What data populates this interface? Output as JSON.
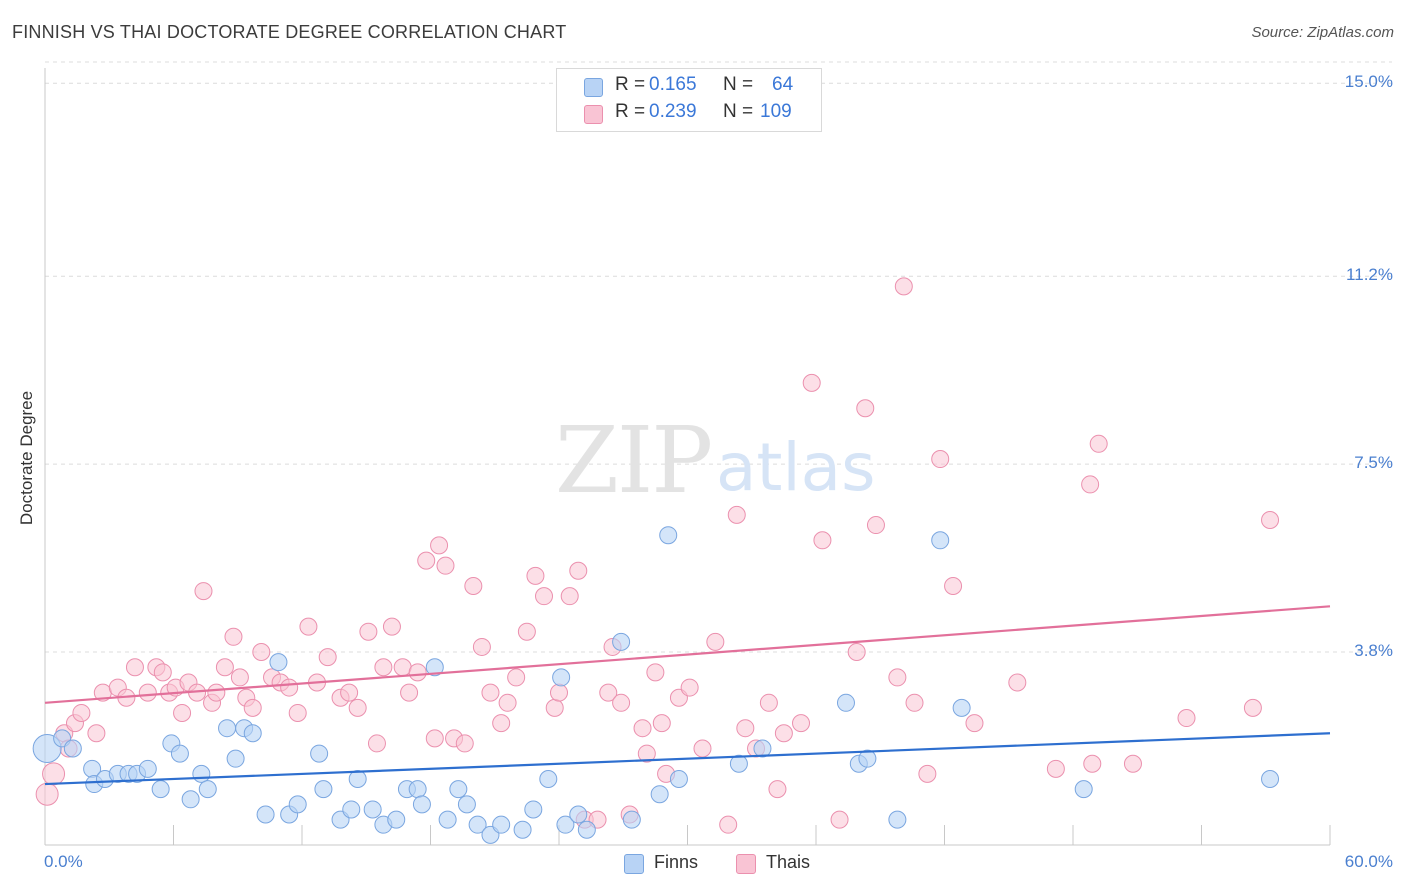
{
  "title": "FINNISH VS THAI DOCTORATE DEGREE CORRELATION CHART",
  "source": "Source: ZipAtlas.com",
  "watermark": {
    "zip": "ZIP",
    "atlas": "atlas"
  },
  "legend": {
    "rows": [
      {
        "r_label": "R =",
        "r_value": "0.165",
        "n_label": "N =",
        "n_value": "64"
      },
      {
        "r_label": "R =",
        "r_value": "0.239",
        "n_label": "N =",
        "n_value": "109"
      }
    ]
  },
  "bottom_legend": {
    "finns": "Finns",
    "thais": "Thais"
  },
  "colors": {
    "finns_fill": "#b8d3f5",
    "finns_stroke": "#7aa6e0",
    "finns_line": "#2e6fcf",
    "thais_fill": "#f9c4d4",
    "thais_stroke": "#eb90ae",
    "thais_line": "#e2709a",
    "tick_text": "#4a7fcf",
    "grid": "#dcdcdc"
  },
  "chart_data": {
    "type": "scatter",
    "title": "FINNISH VS THAI DOCTORATE DEGREE CORRELATION CHART",
    "xlabel": "",
    "ylabel": "Doctorate Degree",
    "xlim": [
      0,
      60
    ],
    "ylim": [
      0,
      15.3
    ],
    "y_ticks": [
      {
        "value": 3.8,
        "label": "3.8%"
      },
      {
        "value": 7.5,
        "label": "7.5%"
      },
      {
        "value": 11.2,
        "label": "11.2%"
      },
      {
        "value": 15.0,
        "label": "15.0%"
      }
    ],
    "x_tick_labels": [
      {
        "value": 0,
        "label": "0.0%"
      },
      {
        "value": 60,
        "label": "60.0%"
      }
    ],
    "grid": true,
    "legend_position": "top-center",
    "series": [
      {
        "name": "Finns",
        "r": 0.165,
        "n": 64,
        "trend": {
          "x": [
            0,
            60
          ],
          "y": [
            1.2,
            2.2
          ]
        },
        "points": [
          [
            0.1,
            1.9
          ],
          [
            0.8,
            2.1
          ],
          [
            1.3,
            1.9
          ],
          [
            2.2,
            1.5
          ],
          [
            2.3,
            1.2
          ],
          [
            2.8,
            1.3
          ],
          [
            3.4,
            1.4
          ],
          [
            3.9,
            1.4
          ],
          [
            4.3,
            1.4
          ],
          [
            4.8,
            1.5
          ],
          [
            5.4,
            1.1
          ],
          [
            5.9,
            2.0
          ],
          [
            6.3,
            1.8
          ],
          [
            6.8,
            0.9
          ],
          [
            7.3,
            1.4
          ],
          [
            7.6,
            1.1
          ],
          [
            8.5,
            2.3
          ],
          [
            8.9,
            1.7
          ],
          [
            9.3,
            2.3
          ],
          [
            9.7,
            2.2
          ],
          [
            10.3,
            0.6
          ],
          [
            10.9,
            3.6
          ],
          [
            11.4,
            0.6
          ],
          [
            11.8,
            0.8
          ],
          [
            12.8,
            1.8
          ],
          [
            13.0,
            1.1
          ],
          [
            13.8,
            0.5
          ],
          [
            14.3,
            0.7
          ],
          [
            14.6,
            1.3
          ],
          [
            15.3,
            0.7
          ],
          [
            15.8,
            0.4
          ],
          [
            16.4,
            0.5
          ],
          [
            16.9,
            1.1
          ],
          [
            17.4,
            1.1
          ],
          [
            17.6,
            0.8
          ],
          [
            18.2,
            3.5
          ],
          [
            18.8,
            0.5
          ],
          [
            19.3,
            1.1
          ],
          [
            19.7,
            0.8
          ],
          [
            20.2,
            0.4
          ],
          [
            20.8,
            0.2
          ],
          [
            21.3,
            0.4
          ],
          [
            22.3,
            0.3
          ],
          [
            22.8,
            0.7
          ],
          [
            23.5,
            1.3
          ],
          [
            24.1,
            3.3
          ],
          [
            24.3,
            0.4
          ],
          [
            24.9,
            0.6
          ],
          [
            25.3,
            0.3
          ],
          [
            26.9,
            4.0
          ],
          [
            27.4,
            0.5
          ],
          [
            28.7,
            1.0
          ],
          [
            29.1,
            6.1
          ],
          [
            29.6,
            1.3
          ],
          [
            32.4,
            1.6
          ],
          [
            33.5,
            1.9
          ],
          [
            37.4,
            2.8
          ],
          [
            38.0,
            1.6
          ],
          [
            38.4,
            1.7
          ],
          [
            39.8,
            0.5
          ],
          [
            41.8,
            6.0
          ],
          [
            42.8,
            2.7
          ],
          [
            57.2,
            1.3
          ],
          [
            48.5,
            1.1
          ]
        ]
      },
      {
        "name": "Thais",
        "r": 0.239,
        "n": 109,
        "trend": {
          "x": [
            0,
            60
          ],
          "y": [
            2.8,
            4.7
          ]
        },
        "points": [
          [
            0.1,
            1.0
          ],
          [
            0.4,
            1.4
          ],
          [
            0.9,
            2.2
          ],
          [
            1.1,
            1.9
          ],
          [
            1.4,
            2.4
          ],
          [
            1.7,
            2.6
          ],
          [
            2.4,
            2.2
          ],
          [
            2.7,
            3.0
          ],
          [
            3.4,
            3.1
          ],
          [
            3.8,
            2.9
          ],
          [
            4.2,
            3.5
          ],
          [
            4.8,
            3.0
          ],
          [
            5.2,
            3.5
          ],
          [
            5.5,
            3.4
          ],
          [
            5.8,
            3.0
          ],
          [
            6.1,
            3.1
          ],
          [
            6.4,
            2.6
          ],
          [
            6.7,
            3.2
          ],
          [
            7.1,
            3.0
          ],
          [
            7.4,
            5.0
          ],
          [
            7.8,
            2.8
          ],
          [
            8.0,
            3.0
          ],
          [
            8.4,
            3.5
          ],
          [
            8.8,
            4.1
          ],
          [
            9.1,
            3.3
          ],
          [
            9.4,
            2.9
          ],
          [
            9.7,
            2.7
          ],
          [
            10.1,
            3.8
          ],
          [
            10.6,
            3.3
          ],
          [
            11.0,
            3.2
          ],
          [
            11.4,
            3.1
          ],
          [
            11.8,
            2.6
          ],
          [
            12.3,
            4.3
          ],
          [
            12.7,
            3.2
          ],
          [
            13.2,
            3.7
          ],
          [
            13.8,
            2.9
          ],
          [
            14.2,
            3.0
          ],
          [
            14.6,
            2.7
          ],
          [
            15.1,
            4.2
          ],
          [
            15.5,
            2.0
          ],
          [
            15.8,
            3.5
          ],
          [
            16.2,
            4.3
          ],
          [
            16.7,
            3.5
          ],
          [
            17.0,
            3.0
          ],
          [
            17.4,
            3.4
          ],
          [
            17.8,
            5.6
          ],
          [
            18.2,
            2.1
          ],
          [
            18.4,
            5.9
          ],
          [
            18.7,
            5.5
          ],
          [
            19.1,
            2.1
          ],
          [
            19.6,
            2.0
          ],
          [
            20.0,
            5.1
          ],
          [
            20.4,
            3.9
          ],
          [
            20.8,
            3.0
          ],
          [
            21.3,
            2.4
          ],
          [
            21.6,
            2.8
          ],
          [
            22.0,
            3.3
          ],
          [
            22.5,
            4.2
          ],
          [
            22.9,
            5.3
          ],
          [
            23.3,
            4.9
          ],
          [
            23.8,
            2.7
          ],
          [
            24.0,
            3.0
          ],
          [
            24.5,
            4.9
          ],
          [
            24.9,
            5.4
          ],
          [
            25.2,
            0.5
          ],
          [
            25.8,
            0.5
          ],
          [
            26.3,
            3.0
          ],
          [
            26.5,
            3.9
          ],
          [
            26.9,
            2.8
          ],
          [
            27.3,
            0.6
          ],
          [
            27.9,
            2.3
          ],
          [
            28.1,
            1.8
          ],
          [
            28.5,
            3.4
          ],
          [
            28.8,
            2.4
          ],
          [
            29.0,
            1.4
          ],
          [
            29.6,
            2.9
          ],
          [
            30.1,
            3.1
          ],
          [
            30.7,
            1.9
          ],
          [
            31.3,
            4.0
          ],
          [
            31.9,
            0.4
          ],
          [
            32.3,
            6.5
          ],
          [
            32.7,
            2.3
          ],
          [
            33.2,
            1.9
          ],
          [
            33.8,
            2.8
          ],
          [
            34.2,
            1.1
          ],
          [
            34.5,
            2.2
          ],
          [
            35.3,
            2.4
          ],
          [
            35.8,
            9.1
          ],
          [
            36.3,
            6.0
          ],
          [
            37.1,
            0.5
          ],
          [
            37.9,
            3.8
          ],
          [
            38.3,
            8.6
          ],
          [
            38.8,
            6.3
          ],
          [
            39.8,
            3.3
          ],
          [
            40.1,
            11.0
          ],
          [
            40.6,
            2.8
          ],
          [
            41.2,
            1.4
          ],
          [
            41.8,
            7.6
          ],
          [
            42.4,
            5.1
          ],
          [
            43.4,
            2.4
          ],
          [
            45.4,
            3.2
          ],
          [
            47.2,
            1.5
          ],
          [
            48.9,
            1.6
          ],
          [
            50.8,
            1.6
          ],
          [
            49.2,
            7.9
          ],
          [
            48.8,
            7.1
          ],
          [
            53.3,
            2.5
          ],
          [
            56.4,
            2.7
          ],
          [
            57.2,
            6.4
          ]
        ]
      }
    ]
  }
}
